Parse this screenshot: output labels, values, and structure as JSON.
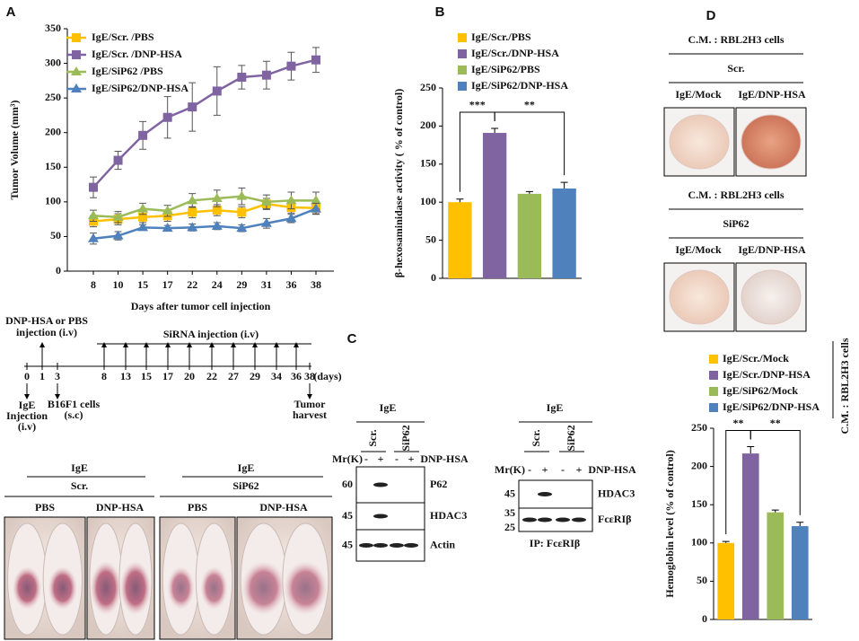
{
  "panel_labels": [
    "A",
    "B",
    "C",
    "D"
  ],
  "chart_data": [
    {
      "type": "line",
      "categories": [
        "8",
        "10",
        "15",
        "17",
        "22",
        "24",
        "29",
        "31",
        "36",
        "38"
      ],
      "xlabel": "Days after tumor cell injection",
      "ylabel": "Tumor Volume (mm³)",
      "ylim": [
        0,
        350
      ],
      "yticks": [
        0,
        50,
        100,
        150,
        200,
        250,
        300,
        350
      ],
      "legend": "upper left",
      "series": [
        {
          "name": "IgE/Scr. /PBS",
          "color": "#ffc000",
          "marker": "square",
          "values": [
            72,
            75,
            78,
            80,
            85,
            88,
            85,
            97,
            92,
            91
          ],
          "errors": [
            8,
            8,
            8,
            8,
            8,
            8,
            8,
            8,
            8,
            8
          ]
        },
        {
          "name": "IgE/Scr. /DNP-HSA",
          "color": "#8064a2",
          "marker": "square",
          "values": [
            121,
            160,
            196,
            222,
            237,
            260,
            280,
            283,
            296,
            305
          ],
          "errors": [
            15,
            13,
            20,
            30,
            35,
            35,
            17,
            20,
            20,
            18
          ]
        },
        {
          "name": "IgE/SiP62 /PBS",
          "color": "#9bbb59",
          "marker": "triangle",
          "values": [
            80,
            78,
            90,
            87,
            102,
            105,
            108,
            100,
            102,
            102
          ],
          "errors": [
            8,
            8,
            8,
            8,
            10,
            12,
            12,
            10,
            12,
            12
          ]
        },
        {
          "name": "IgE/SiP62/DNP-HSA",
          "color": "#4f81bd",
          "marker": "triangle",
          "values": [
            47,
            51,
            63,
            62,
            63,
            65,
            62,
            69,
            76,
            90
          ],
          "errors": [
            8,
            6,
            4,
            4,
            5,
            5,
            5,
            7,
            6,
            8
          ]
        }
      ]
    },
    {
      "type": "bar",
      "categories": [
        "IgE/Scr./PBS",
        "IgE/Scr./DNP-HSA",
        "IgE/SiP62/PBS",
        "IgE/SiP62/DNP-HSA"
      ],
      "colors": [
        "#ffc000",
        "#8064a2",
        "#9bbb59",
        "#4f81bd"
      ],
      "values": [
        100,
        191,
        111,
        118
      ],
      "errors": [
        4,
        6,
        3,
        8
      ],
      "ylabel": "β-hexosaminidase activity ( % of control)",
      "ylim": [
        0,
        250
      ],
      "yticks": [
        0,
        50,
        100,
        150,
        200,
        250
      ],
      "annotations": [
        "***",
        "**"
      ]
    },
    {
      "type": "bar",
      "categories": [
        "IgE/Scr./Mock",
        "IgE/Scr./DNP-HSA",
        "IgE/SiP62/Mock",
        "IgE/SiP62/DNP-HSA"
      ],
      "colors": [
        "#ffc000",
        "#8064a2",
        "#9bbb59",
        "#4f81bd"
      ],
      "values": [
        100,
        217,
        140,
        122
      ],
      "errors": [
        2,
        9,
        3,
        5
      ],
      "ylabel": "Hemoglobin level (% of control)",
      "ylim": [
        0,
        250
      ],
      "yticks": [
        0,
        50,
        100,
        150,
        200,
        250
      ],
      "annotations": [
        "**",
        "**"
      ],
      "legend_title": "C.M. : RBL2H3 cells"
    }
  ],
  "timeline": {
    "pre": [
      "DNP-HSA or PBS",
      "injection (i.v)"
    ],
    "sirna": "SiRNA injection (i.v)",
    "days": [
      "0",
      "1",
      "3",
      "8",
      "13",
      "15",
      "17",
      "20",
      "22",
      "27",
      "29",
      "34",
      "36",
      "38"
    ],
    "unit": "(days)",
    "ige": [
      "IgE",
      "Injection",
      "(i.v)"
    ],
    "cells": [
      "B16F1 cells",
      "(s.c)"
    ],
    "harvest": [
      "Tumor",
      "harvest"
    ]
  },
  "mouse_photos": {
    "groups": [
      {
        "top": "IgE",
        "mid": "Scr.",
        "cols": [
          "PBS",
          "DNP-HSA"
        ]
      },
      {
        "top": "IgE",
        "mid": "SiP62",
        "cols": [
          "PBS",
          "DNP-HSA"
        ]
      }
    ]
  },
  "blot_left": {
    "top": "IgE",
    "groups": [
      "Scr.",
      "SiP62"
    ],
    "mr": "Mr(K)",
    "signs": [
      "-",
      "+",
      "-",
      "+"
    ],
    "treat": "DNP-HSA",
    "rows": [
      {
        "markers": [
          "60"
        ],
        "label": "P62"
      },
      {
        "markers": [
          "45"
        ],
        "label": "HDAC3"
      },
      {
        "markers": [
          "45"
        ],
        "label": "Actin"
      }
    ]
  },
  "blot_right": {
    "top": "IgE",
    "groups": [
      "Scr.",
      "SiP62"
    ],
    "mr": "Mr(K)",
    "signs": [
      "-",
      "+",
      "-",
      "+"
    ],
    "treat": "DNP-HSA",
    "rows": [
      {
        "markers": [
          "45"
        ],
        "label": "HDAC3"
      },
      {
        "markers": [
          "35",
          "25"
        ],
        "label": "FcεRIβ"
      }
    ],
    "ip": "IP: FcεRIβ"
  },
  "photo_d": [
    {
      "title": "C.M. : RBL2H3 cells",
      "group": "Scr.",
      "cols": [
        "IgE/Mock",
        "IgE/DNP-HSA"
      ]
    },
    {
      "title": "C.M. : RBL2H3 cells",
      "group": "SiP62",
      "cols": [
        "IgE/Mock",
        "IgE/DNP-HSA"
      ]
    }
  ]
}
